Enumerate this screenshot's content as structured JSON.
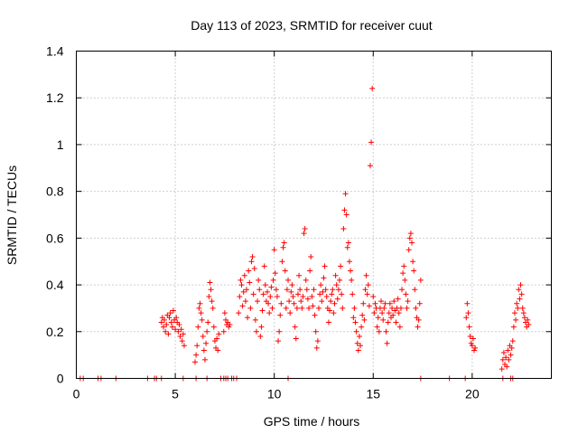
{
  "chart_data": {
    "type": "scatter",
    "title": "Day 113 of 2023, SRMTID for receiver cuut",
    "xlabel": "GPS time / hours",
    "ylabel": "SRMTID / TECUs",
    "xlim": [
      0,
      24
    ],
    "ylim": [
      0,
      1.4
    ],
    "xticks": [
      0,
      5,
      10,
      15,
      20
    ],
    "xtick_labels": [
      "0",
      "5",
      "10",
      "15",
      "20"
    ],
    "yticks": [
      0,
      0.2,
      0.4,
      0.6,
      0.8,
      1.0,
      1.2,
      1.4
    ],
    "ytick_labels": [
      "0",
      "0.2",
      "0.4",
      "0.6",
      "0.8",
      "1",
      "1.2",
      "1.4"
    ],
    "grid": true,
    "marker": "plus",
    "color": "#ff0000",
    "series": [
      {
        "name": "SRMTID",
        "points": [
          [
            0.2,
            0
          ],
          [
            0.35,
            0
          ],
          [
            1.1,
            0
          ],
          [
            1.25,
            0
          ],
          [
            2.0,
            0
          ],
          [
            3.6,
            0
          ],
          [
            3.95,
            0
          ],
          [
            4.05,
            0
          ],
          [
            4.3,
            0
          ],
          [
            5.4,
            0
          ],
          [
            6.05,
            0
          ],
          [
            6.6,
            0
          ],
          [
            7.3,
            0
          ],
          [
            7.45,
            0
          ],
          [
            7.55,
            0
          ],
          [
            7.65,
            0
          ],
          [
            7.85,
            0
          ],
          [
            7.95,
            0
          ],
          [
            8.1,
            0
          ],
          [
            10.7,
            0
          ],
          [
            17.4,
            0
          ],
          [
            18.85,
            0
          ],
          [
            19.65,
            0
          ],
          [
            21.55,
            0
          ],
          [
            21.95,
            0
          ],
          [
            22.05,
            0
          ],
          [
            4.3,
            0.24
          ],
          [
            4.35,
            0.26
          ],
          [
            4.4,
            0.22
          ],
          [
            4.45,
            0.25
          ],
          [
            4.5,
            0.2
          ],
          [
            4.55,
            0.23
          ],
          [
            4.6,
            0.27
          ],
          [
            4.65,
            0.19
          ],
          [
            4.7,
            0.26
          ],
          [
            4.75,
            0.28
          ],
          [
            4.8,
            0.24
          ],
          [
            4.85,
            0.22
          ],
          [
            4.9,
            0.29
          ],
          [
            4.95,
            0.25
          ],
          [
            5.0,
            0.21
          ],
          [
            5.05,
            0.26
          ],
          [
            5.1,
            0.24
          ],
          [
            5.15,
            0.2
          ],
          [
            5.2,
            0.23
          ],
          [
            5.25,
            0.18
          ],
          [
            5.3,
            0.21
          ],
          [
            5.35,
            0.16
          ],
          [
            5.4,
            0.19
          ],
          [
            5.45,
            0.14
          ],
          [
            6.0,
            0.07
          ],
          [
            6.05,
            0.1
          ],
          [
            6.1,
            0.14
          ],
          [
            6.15,
            0.22
          ],
          [
            6.2,
            0.3
          ],
          [
            6.25,
            0.32
          ],
          [
            6.3,
            0.28
          ],
          [
            6.35,
            0.25
          ],
          [
            6.4,
            0.18
          ],
          [
            6.45,
            0.12
          ],
          [
            6.5,
            0.08
          ],
          [
            6.55,
            0.15
          ],
          [
            6.6,
            0.2
          ],
          [
            6.65,
            0.24
          ],
          [
            6.7,
            0.35
          ],
          [
            6.75,
            0.41
          ],
          [
            6.8,
            0.38
          ],
          [
            6.85,
            0.33
          ],
          [
            6.9,
            0.3
          ],
          [
            6.95,
            0.22
          ],
          [
            7.0,
            0.16
          ],
          [
            7.05,
            0.13
          ],
          [
            7.1,
            0.17
          ],
          [
            7.15,
            0.12
          ],
          [
            7.2,
            0.19
          ],
          [
            7.45,
            0.2
          ],
          [
            7.5,
            0.28
          ],
          [
            7.55,
            0.25
          ],
          [
            7.6,
            0.23
          ],
          [
            7.65,
            0.24
          ],
          [
            7.7,
            0.22
          ],
          [
            7.75,
            0.23
          ],
          [
            8.2,
            0.28
          ],
          [
            8.25,
            0.35
          ],
          [
            8.3,
            0.42
          ],
          [
            8.35,
            0.4
          ],
          [
            8.4,
            0.31
          ],
          [
            8.45,
            0.37
          ],
          [
            8.5,
            0.44
          ],
          [
            8.55,
            0.33
          ],
          [
            8.6,
            0.38
          ],
          [
            8.65,
            0.26
          ],
          [
            8.7,
            0.46
          ],
          [
            8.75,
            0.41
          ],
          [
            8.8,
            0.3
          ],
          [
            8.85,
            0.5
          ],
          [
            8.9,
            0.52
          ],
          [
            8.95,
            0.36
          ],
          [
            9.0,
            0.47
          ],
          [
            9.05,
            0.25
          ],
          [
            9.1,
            0.2
          ],
          [
            9.15,
            0.33
          ],
          [
            9.2,
            0.42
          ],
          [
            9.25,
            0.38
          ],
          [
            9.3,
            0.18
          ],
          [
            9.35,
            0.22
          ],
          [
            9.4,
            0.29
          ],
          [
            9.45,
            0.36
          ],
          [
            9.5,
            0.48
          ],
          [
            9.55,
            0.4
          ],
          [
            9.6,
            0.33
          ],
          [
            9.65,
            0.37
          ],
          [
            9.7,
            0.32
          ],
          [
            9.75,
            0.28
          ],
          [
            9.8,
            0.35
          ],
          [
            9.85,
            0.39
          ],
          [
            9.9,
            0.3
          ],
          [
            9.95,
            0.42
          ],
          [
            10.0,
            0.55
          ],
          [
            10.05,
            0.45
          ],
          [
            10.1,
            0.38
          ],
          [
            10.15,
            0.35
          ],
          [
            10.2,
            0.16
          ],
          [
            10.25,
            0.2
          ],
          [
            10.3,
            0.27
          ],
          [
            10.35,
            0.32
          ],
          [
            10.4,
            0.5
          ],
          [
            10.45,
            0.56
          ],
          [
            10.5,
            0.58
          ],
          [
            10.55,
            0.46
          ],
          [
            10.6,
            0.3
          ],
          [
            10.65,
            0.38
          ],
          [
            10.7,
            0.42
          ],
          [
            10.75,
            0.33
          ],
          [
            10.8,
            0.28
          ],
          [
            10.85,
            0.37
          ],
          [
            10.9,
            0.4
          ],
          [
            10.95,
            0.35
          ],
          [
            11.0,
            0.32
          ],
          [
            11.05,
            0.22
          ],
          [
            11.1,
            0.17
          ],
          [
            11.15,
            0.3
          ],
          [
            11.2,
            0.36
          ],
          [
            11.25,
            0.44
          ],
          [
            11.3,
            0.38
          ],
          [
            11.35,
            0.33
          ],
          [
            11.4,
            0.3
          ],
          [
            11.45,
            0.35
          ],
          [
            11.5,
            0.62
          ],
          [
            11.55,
            0.64
          ],
          [
            11.6,
            0.42
          ],
          [
            11.65,
            0.38
          ],
          [
            11.7,
            0.34
          ],
          [
            11.75,
            0.3
          ],
          [
            11.8,
            0.46
          ],
          [
            11.85,
            0.52
          ],
          [
            11.9,
            0.35
          ],
          [
            11.95,
            0.31
          ],
          [
            12.0,
            0.38
          ],
          [
            12.05,
            0.27
          ],
          [
            12.1,
            0.2
          ],
          [
            12.15,
            0.13
          ],
          [
            12.2,
            0.16
          ],
          [
            12.25,
            0.3
          ],
          [
            12.3,
            0.36
          ],
          [
            12.35,
            0.4
          ],
          [
            12.4,
            0.33
          ],
          [
            12.45,
            0.37
          ],
          [
            12.5,
            0.43
          ],
          [
            12.55,
            0.48
          ],
          [
            12.6,
            0.38
          ],
          [
            12.65,
            0.35
          ],
          [
            12.7,
            0.3
          ],
          [
            12.75,
            0.24
          ],
          [
            12.8,
            0.29
          ],
          [
            12.85,
            0.33
          ],
          [
            12.9,
            0.36
          ],
          [
            12.95,
            0.38
          ],
          [
            13.0,
            0.28
          ],
          [
            13.05,
            0.32
          ],
          [
            13.1,
            0.44
          ],
          [
            13.15,
            0.4
          ],
          [
            13.2,
            0.34
          ],
          [
            13.25,
            0.38
          ],
          [
            13.3,
            0.42
          ],
          [
            13.35,
            0.48
          ],
          [
            13.4,
            0.36
          ],
          [
            13.45,
            0.3
          ],
          [
            13.5,
            0.64
          ],
          [
            13.55,
            0.72
          ],
          [
            13.6,
            0.79
          ],
          [
            13.65,
            0.7
          ],
          [
            13.7,
            0.56
          ],
          [
            13.75,
            0.58
          ],
          [
            13.8,
            0.5
          ],
          [
            13.85,
            0.46
          ],
          [
            13.9,
            0.42
          ],
          [
            13.95,
            0.36
          ],
          [
            14.0,
            0.26
          ],
          [
            14.05,
            0.3
          ],
          [
            14.1,
            0.24
          ],
          [
            14.15,
            0.2
          ],
          [
            14.2,
            0.15
          ],
          [
            14.25,
            0.12
          ],
          [
            14.3,
            0.18
          ],
          [
            14.35,
            0.14
          ],
          [
            14.4,
            0.22
          ],
          [
            14.45,
            0.27
          ],
          [
            14.5,
            0.32
          ],
          [
            14.55,
            0.25
          ],
          [
            14.6,
            0.38
          ],
          [
            14.65,
            0.44
          ],
          [
            14.7,
            0.36
          ],
          [
            14.75,
            0.4
          ],
          [
            14.8,
            0.31
          ],
          [
            14.85,
            0.91
          ],
          [
            14.9,
            1.01
          ],
          [
            14.95,
            1.24
          ],
          [
            15.0,
            0.35
          ],
          [
            15.05,
            0.28
          ],
          [
            15.1,
            0.32
          ],
          [
            15.15,
            0.3
          ],
          [
            15.2,
            0.22
          ],
          [
            15.25,
            0.26
          ],
          [
            15.3,
            0.2
          ],
          [
            15.35,
            0.3
          ],
          [
            15.4,
            0.33
          ],
          [
            15.45,
            0.28
          ],
          [
            15.5,
            0.25
          ],
          [
            15.55,
            0.3
          ],
          [
            15.6,
            0.32
          ],
          [
            15.65,
            0.2
          ],
          [
            15.7,
            0.15
          ],
          [
            15.75,
            0.24
          ],
          [
            15.8,
            0.28
          ],
          [
            15.85,
            0.32
          ],
          [
            15.9,
            0.26
          ],
          [
            15.95,
            0.3
          ],
          [
            16.0,
            0.27
          ],
          [
            16.05,
            0.33
          ],
          [
            16.1,
            0.29
          ],
          [
            16.15,
            0.24
          ],
          [
            16.2,
            0.3
          ],
          [
            16.25,
            0.34
          ],
          [
            16.3,
            0.28
          ],
          [
            16.35,
            0.22
          ],
          [
            16.4,
            0.3
          ],
          [
            16.45,
            0.38
          ],
          [
            16.5,
            0.45
          ],
          [
            16.55,
            0.48
          ],
          [
            16.6,
            0.42
          ],
          [
            16.65,
            0.36
          ],
          [
            16.7,
            0.3
          ],
          [
            16.75,
            0.33
          ],
          [
            16.8,
            0.55
          ],
          [
            16.85,
            0.6
          ],
          [
            16.9,
            0.62
          ],
          [
            16.95,
            0.58
          ],
          [
            17.0,
            0.5
          ],
          [
            17.05,
            0.46
          ],
          [
            17.1,
            0.38
          ],
          [
            17.15,
            0.3
          ],
          [
            17.2,
            0.26
          ],
          [
            17.25,
            0.22
          ],
          [
            17.3,
            0.25
          ],
          [
            17.35,
            0.32
          ],
          [
            17.4,
            0.42
          ],
          [
            19.7,
            0.26
          ],
          [
            19.75,
            0.32
          ],
          [
            19.8,
            0.28
          ],
          [
            19.85,
            0.22
          ],
          [
            19.9,
            0.18
          ],
          [
            19.95,
            0.15
          ],
          [
            20.0,
            0.14
          ],
          [
            20.05,
            0.17
          ],
          [
            20.1,
            0.12
          ],
          [
            20.15,
            0.13
          ],
          [
            21.5,
            0.04
          ],
          [
            21.55,
            0.08
          ],
          [
            21.6,
            0.11
          ],
          [
            21.65,
            0.06
          ],
          [
            21.7,
            0.09
          ],
          [
            21.75,
            0.05
          ],
          [
            21.8,
            0.12
          ],
          [
            21.85,
            0.08
          ],
          [
            21.9,
            0.14
          ],
          [
            21.95,
            0.1
          ],
          [
            22.0,
            0.13
          ],
          [
            22.05,
            0.16
          ],
          [
            22.1,
            0.22
          ],
          [
            22.15,
            0.28
          ],
          [
            22.2,
            0.25
          ],
          [
            22.25,
            0.32
          ],
          [
            22.3,
            0.3
          ],
          [
            22.35,
            0.38
          ],
          [
            22.4,
            0.34
          ],
          [
            22.45,
            0.4
          ],
          [
            22.5,
            0.36
          ],
          [
            22.55,
            0.3
          ],
          [
            22.6,
            0.28
          ],
          [
            22.65,
            0.26
          ],
          [
            22.7,
            0.24
          ],
          [
            22.75,
            0.22
          ],
          [
            22.8,
            0.25
          ],
          [
            22.85,
            0.23
          ]
        ]
      }
    ]
  }
}
